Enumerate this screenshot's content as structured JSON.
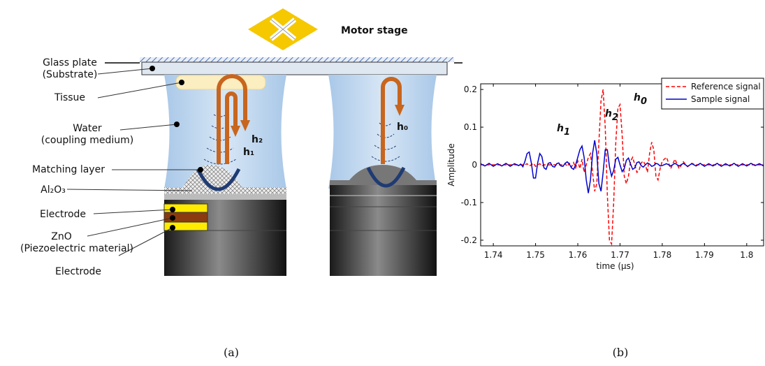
{
  "diagram": {
    "motor_stage": "Motor stage",
    "labels": [
      "Glass plate",
      "(Substrate)",
      "Tissue",
      "Water",
      "(coupling medium)",
      "Matching layer",
      "Al₂O₃",
      "Electrode",
      "ZnO",
      "(Piezoelectric material)",
      "Electrode"
    ],
    "heights": [
      "h₁",
      "h₂",
      "h₀"
    ]
  },
  "captions": [
    "(a)",
    "(b)"
  ],
  "chart_data": {
    "type": "line",
    "xlabel": "time (μs)",
    "ylabel": "Amplitude",
    "xlim": [
      1.737,
      1.804
    ],
    "ylim": [
      -0.215,
      0.215
    ],
    "xticks": [
      1.74,
      1.75,
      1.76,
      1.77,
      1.78,
      1.79,
      1.8
    ],
    "yticks": [
      -0.2,
      -0.1,
      0,
      0.1,
      0.2
    ],
    "legend": "upper right",
    "annotations": [
      "h1",
      "h2",
      "h0"
    ],
    "x": [
      1.737,
      1.738,
      1.739,
      1.74,
      1.741,
      1.742,
      1.743,
      1.744,
      1.745,
      1.746,
      1.7465,
      1.747,
      1.7475,
      1.748,
      1.7485,
      1.749,
      1.7495,
      1.75,
      1.7505,
      1.751,
      1.7515,
      1.752,
      1.7525,
      1.753,
      1.7535,
      1.754,
      1.7545,
      1.755,
      1.7555,
      1.756,
      1.7565,
      1.757,
      1.7575,
      1.758,
      1.7585,
      1.759,
      1.7595,
      1.76,
      1.7605,
      1.761,
      1.7615,
      1.762,
      1.7625,
      1.763,
      1.7635,
      1.764,
      1.7645,
      1.765,
      1.7655,
      1.766,
      1.7665,
      1.767,
      1.7675,
      1.768,
      1.7685,
      1.769,
      1.7695,
      1.77,
      1.7705,
      1.771,
      1.7715,
      1.772,
      1.7725,
      1.773,
      1.7735,
      1.774,
      1.7745,
      1.775,
      1.7755,
      1.776,
      1.7765,
      1.777,
      1.7775,
      1.778,
      1.7785,
      1.779,
      1.7795,
      1.78,
      1.781,
      1.782,
      1.783,
      1.784,
      1.785,
      1.786,
      1.787,
      1.788,
      1.789,
      1.79,
      1.791,
      1.792,
      1.793,
      1.794,
      1.795,
      1.796,
      1.797,
      1.798,
      1.799,
      1.8,
      1.801,
      1.802,
      1.803,
      1.804
    ],
    "series": [
      {
        "name": "Reference signal",
        "color": "#ff0000",
        "dash": true,
        "values": [
          0,
          0,
          0,
          0,
          0,
          0,
          0,
          0,
          0,
          0,
          0,
          0,
          0,
          0.003,
          -0.003,
          0,
          0.004,
          -0.004,
          0,
          0.003,
          -0.003,
          0,
          0,
          0,
          0,
          0,
          0,
          0,
          0,
          0,
          0,
          0.003,
          -0.004,
          0.004,
          -0.006,
          0.006,
          -0.008,
          0.01,
          -0.01,
          0.015,
          -0.02,
          0,
          0.02,
          0.03,
          -0.02,
          -0.07,
          -0.05,
          0.06,
          0.17,
          0.2,
          0.1,
          -0.08,
          -0.2,
          -0.21,
          -0.1,
          0.06,
          0.15,
          0.16,
          0.08,
          -0.03,
          -0.05,
          -0.03,
          0.01,
          0.02,
          0,
          -0.02,
          -0.015,
          0.005,
          0.01,
          0,
          -0.02,
          0.03,
          0.06,
          0.04,
          -0.03,
          -0.04,
          -0.01,
          0.01,
          0.02,
          -0.01,
          0.015,
          -0.01,
          0.008,
          -0.005,
          0.004,
          0,
          0,
          0,
          0,
          0,
          0,
          0,
          0,
          0,
          0,
          0,
          0,
          0,
          0,
          0,
          0,
          0
        ]
      },
      {
        "name": "Sample signal",
        "color": "#0000cc",
        "dash": false,
        "values": [
          0.003,
          -0.003,
          0.004,
          -0.004,
          0.003,
          -0.003,
          0.004,
          -0.004,
          0.003,
          -0.002,
          0.002,
          -0.005,
          0.01,
          0.03,
          0.034,
          0.005,
          -0.035,
          -0.035,
          0.005,
          0.03,
          0.022,
          -0.008,
          -0.012,
          0.004,
          0.006,
          -0.004,
          -0.006,
          0.003,
          0.005,
          -0.003,
          -0.004,
          0.004,
          0.008,
          0.002,
          -0.008,
          -0.012,
          0,
          0.02,
          0.04,
          0.05,
          0.02,
          -0.04,
          -0.075,
          -0.04,
          0.03,
          0.065,
          0.03,
          -0.05,
          -0.07,
          -0.02,
          0.04,
          0.04,
          -0.005,
          -0.03,
          -0.015,
          0.015,
          0.02,
          0,
          -0.018,
          -0.01,
          0.012,
          0.018,
          0.002,
          -0.012,
          -0.008,
          0.006,
          0.008,
          -0.002,
          -0.006,
          0,
          0.005,
          0.002,
          -0.004,
          -0.002,
          0.004,
          0.002,
          -0.003,
          -0.002,
          0.003,
          -0.003,
          0.004,
          -0.003,
          0.004,
          -0.004,
          0.003,
          -0.003,
          0.004,
          -0.004,
          0.003,
          -0.003,
          0.004,
          -0.004,
          0.003,
          -0.003,
          0.004,
          -0.004,
          0.003,
          -0.003,
          0.004,
          -0.002,
          0.003,
          -0.003
        ]
      }
    ]
  }
}
